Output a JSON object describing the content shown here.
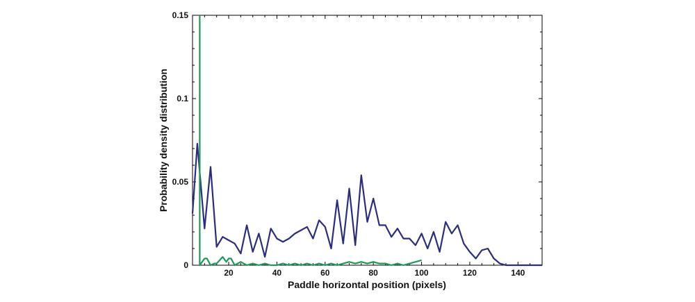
{
  "chart_data": {
    "type": "line",
    "title": "",
    "xlabel": "Paddle horizontal position (pixels)",
    "ylabel": "Probability density distribution",
    "xlim": [
      5,
      150
    ],
    "ylim": [
      0,
      0.15
    ],
    "xticks": [
      20,
      40,
      60,
      80,
      100,
      120,
      140
    ],
    "yticks": [
      0,
      0.05,
      0.1,
      0.15
    ],
    "xtick_labels": [
      "20",
      "40",
      "60",
      "80",
      "100",
      "120",
      "140"
    ],
    "ytick_labels": [
      "0",
      "0.05",
      "0.1",
      "0.15"
    ],
    "grid": false,
    "legend": "none",
    "series": [
      {
        "color": "#2b2d7a",
        "x": [
          5,
          7,
          10,
          12.5,
          15,
          17.5,
          20,
          22.5,
          25,
          27.5,
          30,
          32.5,
          35,
          37.5,
          40,
          42.5,
          45,
          47.5,
          50,
          52.5,
          55,
          57.5,
          60,
          62.5,
          65,
          67.5,
          70,
          72.5,
          75,
          77.5,
          80,
          82.5,
          85,
          87.5,
          90,
          92.5,
          95,
          97.5,
          100,
          102.5,
          105,
          107.5,
          110,
          112.5,
          115,
          117.5,
          120,
          122.5,
          125,
          127.5,
          130,
          132.5,
          135,
          137.5,
          140,
          142.5,
          145,
          147.5,
          150
        ],
        "y": [
          0.031,
          0.073,
          0.022,
          0.059,
          0.011,
          0.017,
          0.015,
          0.013,
          0.007,
          0.024,
          0.008,
          0.019,
          0.005,
          0.022,
          0.016,
          0.014,
          0.016,
          0.019,
          0.021,
          0.023,
          0.016,
          0.027,
          0.023,
          0.01,
          0.039,
          0.013,
          0.046,
          0.012,
          0.054,
          0.026,
          0.04,
          0.024,
          0.024,
          0.017,
          0.022,
          0.016,
          0.016,
          0.012,
          0.019,
          0.01,
          0.02,
          0.008,
          0.026,
          0.019,
          0.024,
          0.013,
          0.008,
          0.004,
          0.009,
          0.01,
          0.004,
          0.001,
          0.0,
          0.0,
          0.0,
          0.0,
          0.0,
          0.0,
          0.0
        ]
      },
      {
        "color": "#1e9a58",
        "x": [
          8,
          8,
          8,
          10,
          11,
          12.5,
          14,
          15,
          17.5,
          19,
          20,
          21,
          22.5,
          25,
          27.5,
          30,
          32.5,
          35,
          37.5,
          40,
          42.5,
          45,
          47.5,
          50,
          52.5,
          55,
          57.5,
          60,
          62.5,
          65,
          67.5,
          70,
          72.5,
          75,
          77.5,
          80,
          82.5,
          85,
          87.5,
          90,
          92.5,
          95,
          97.5,
          100
        ],
        "y": [
          0.15,
          0.0,
          0.0,
          0.004,
          0.004,
          0.0,
          0.001,
          0.001,
          0.005,
          0.002,
          0.004,
          0.004,
          0.0,
          0.002,
          0.0,
          0.001,
          0.0,
          0.001,
          0.0,
          0.0,
          0.001,
          0.0,
          0.001,
          0.0,
          0.001,
          0.0,
          0.001,
          0.0,
          0.001,
          0.0,
          0.001,
          0.002,
          0.001,
          0.002,
          0.001,
          0.002,
          0.001,
          0.001,
          0.0,
          0.001,
          0.0,
          0.001,
          0.002,
          0.003
        ]
      }
    ]
  }
}
